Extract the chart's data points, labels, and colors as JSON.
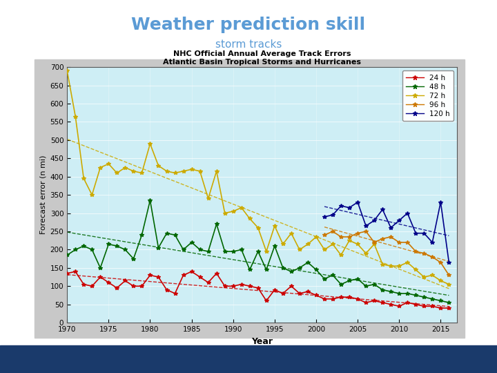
{
  "title": "Weather prediction skill",
  "subtitle": "storm tracks",
  "title_color": "#5b9bd5",
  "subtitle_color": "#5b9bd5",
  "chart_title1": "NHC Official Annual Average Track Errors",
  "chart_title2": "Atlantic Basin Tropical Storms and Hurricanes",
  "xlabel": "Year",
  "ylabel": "Forecast error (n mi)",
  "slide_bg": "#f0f0f0",
  "chart_outer_bg": "#d8d8d8",
  "plot_bg_color": "#ceeef5",
  "xlim": [
    1970,
    2017
  ],
  "ylim": [
    0,
    700
  ],
  "yticks": [
    0,
    50,
    100,
    150,
    200,
    250,
    300,
    350,
    400,
    450,
    500,
    550,
    600,
    650,
    700
  ],
  "xticks": [
    1970,
    1975,
    1980,
    1985,
    1990,
    1995,
    2000,
    2005,
    2010,
    2015
  ],
  "years_24h": [
    1970,
    1971,
    1972,
    1973,
    1974,
    1975,
    1976,
    1977,
    1978,
    1979,
    1980,
    1981,
    1982,
    1983,
    1984,
    1985,
    1986,
    1987,
    1988,
    1989,
    1990,
    1991,
    1992,
    1993,
    1994,
    1995,
    1996,
    1997,
    1998,
    1999,
    2000,
    2001,
    2002,
    2003,
    2004,
    2005,
    2006,
    2007,
    2008,
    2009,
    2010,
    2011,
    2012,
    2013,
    2014,
    2015,
    2016
  ],
  "vals_24h": [
    135,
    140,
    105,
    100,
    125,
    110,
    95,
    115,
    100,
    100,
    130,
    125,
    90,
    80,
    130,
    140,
    125,
    110,
    135,
    100,
    100,
    105,
    100,
    95,
    60,
    90,
    80,
    100,
    80,
    85,
    75,
    65,
    65,
    70,
    70,
    65,
    55,
    60,
    55,
    50,
    45,
    55,
    50,
    45,
    45,
    40,
    40
  ],
  "years_48h": [
    1970,
    1971,
    1972,
    1973,
    1974,
    1975,
    1976,
    1977,
    1978,
    1979,
    1980,
    1981,
    1982,
    1983,
    1984,
    1985,
    1986,
    1987,
    1988,
    1989,
    1990,
    1991,
    1992,
    1993,
    1994,
    1995,
    1996,
    1997,
    1998,
    1999,
    2000,
    2001,
    2002,
    2003,
    2004,
    2005,
    2006,
    2007,
    2008,
    2009,
    2010,
    2011,
    2012,
    2013,
    2014,
    2015,
    2016
  ],
  "vals_48h": [
    185,
    200,
    210,
    200,
    150,
    215,
    210,
    200,
    175,
    240,
    335,
    205,
    245,
    240,
    200,
    220,
    200,
    195,
    270,
    195,
    195,
    200,
    145,
    195,
    145,
    210,
    150,
    140,
    150,
    165,
    145,
    120,
    130,
    105,
    115,
    120,
    100,
    105,
    90,
    85,
    80,
    80,
    75,
    70,
    65,
    60,
    55
  ],
  "years_72h": [
    1970,
    1971,
    1972,
    1973,
    1974,
    1975,
    1976,
    1977,
    1978,
    1979,
    1980,
    1981,
    1982,
    1983,
    1984,
    1985,
    1986,
    1987,
    1988,
    1989,
    1990,
    1991,
    1992,
    1993,
    1994,
    1995,
    1996,
    1997,
    1998,
    1999,
    2000,
    2001,
    2002,
    2003,
    2004,
    2005,
    2006,
    2007,
    2008,
    2009,
    2010,
    2011,
    2012,
    2013,
    2014,
    2015,
    2016
  ],
  "vals_72h": [
    690,
    565,
    395,
    350,
    425,
    435,
    410,
    425,
    415,
    410,
    490,
    430,
    415,
    410,
    415,
    420,
    415,
    340,
    415,
    300,
    305,
    315,
    285,
    260,
    195,
    265,
    215,
    245,
    200,
    215,
    235,
    200,
    215,
    185,
    225,
    215,
    190,
    215,
    160,
    155,
    155,
    165,
    145,
    125,
    130,
    115,
    105
  ],
  "years_96h": [
    2001,
    2002,
    2003,
    2004,
    2005,
    2006,
    2007,
    2008,
    2009,
    2010,
    2011,
    2012,
    2013,
    2014,
    2015,
    2016
  ],
  "vals_96h": [
    240,
    250,
    235,
    235,
    245,
    250,
    220,
    230,
    235,
    220,
    220,
    195,
    190,
    180,
    165,
    130
  ],
  "years_120h": [
    2001,
    2002,
    2003,
    2004,
    2005,
    2006,
    2007,
    2008,
    2009,
    2010,
    2011,
    2012,
    2013,
    2014,
    2015,
    2016
  ],
  "vals_120h": [
    290,
    295,
    320,
    315,
    330,
    265,
    280,
    310,
    260,
    280,
    300,
    245,
    245,
    220,
    330,
    165
  ],
  "color_24h": "#cc0000",
  "color_48h": "#006600",
  "color_72h": "#ccaa00",
  "color_96h": "#cc7700",
  "color_120h": "#000088",
  "bottom_bar_color": "#1a3a6b",
  "bottom_bar_height": 0.075
}
